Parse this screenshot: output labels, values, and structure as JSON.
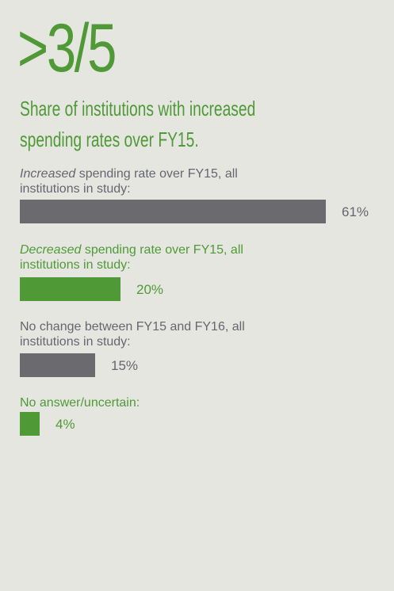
{
  "headline": ">3/5",
  "subtitle_line1": "Share of institutions with increased",
  "subtitle_line2": "spending rates over FY15.",
  "colors": {
    "gray": "#6b6b6f",
    "green": "#4f9a37",
    "background": "#e6e6e1"
  },
  "chart_data": {
    "type": "bar",
    "orientation": "horizontal",
    "unit": "%",
    "xlim": [
      0,
      61
    ],
    "items": [
      {
        "label_emph": "Increased",
        "label_rest1": " spending rate over FY15, all",
        "label_line2": "institutions in study:",
        "value": 61,
        "value_label": "61%",
        "color": "gray"
      },
      {
        "label_emph": "Decreased",
        "label_rest1": " spending rate over FY15, all",
        "label_line2": "institutions in study:",
        "value": 20,
        "value_label": "20%",
        "color": "green"
      },
      {
        "label_emph": "",
        "label_rest1": "No change between FY15 and FY16, all",
        "label_line2": "institutions in study:",
        "value": 15,
        "value_label": "15%",
        "color": "gray"
      },
      {
        "label_emph": "",
        "label_rest1": "No answer/uncertain:",
        "label_line2": "",
        "value": 4,
        "value_label": "4%",
        "color": "green"
      }
    ]
  }
}
